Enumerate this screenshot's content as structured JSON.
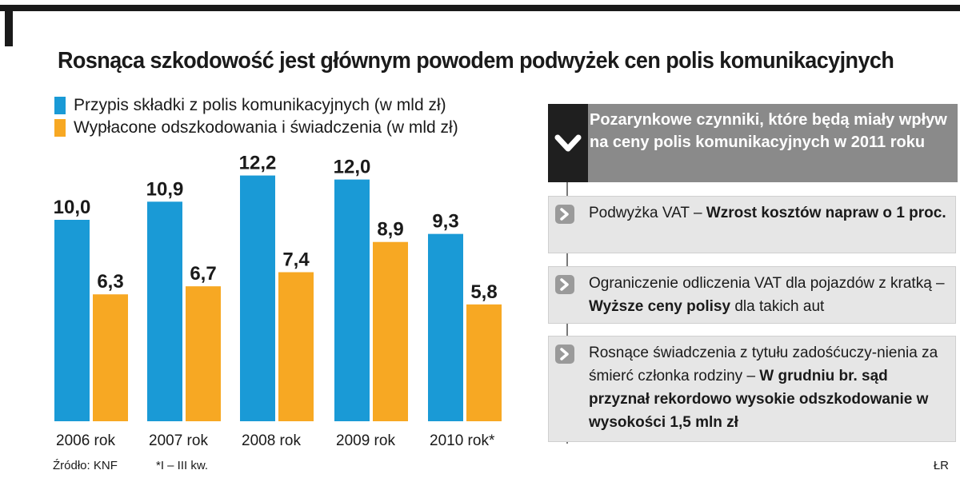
{
  "title": "Rosnąca szkodowość jest głównym powodem podwyżek cen polis komunikacyjnych",
  "chart_data": {
    "type": "bar",
    "categories": [
      "2006 rok",
      "2007 rok",
      "2008 rok",
      "2009 rok",
      "2010 rok*"
    ],
    "series": [
      {
        "name": "Przypis składki z polis komunikacyjnych (w mld zł)",
        "values": [
          10.0,
          10.9,
          12.2,
          12.0,
          9.3
        ],
        "labels": [
          "10,0",
          "10,9",
          "12,2",
          "12,0",
          "9,3"
        ],
        "color": "#1a9ad6"
      },
      {
        "name": "Wypłacone odszkodowania i świadczenia (w mld zł)",
        "values": [
          6.3,
          6.7,
          7.4,
          8.9,
          5.8
        ],
        "labels": [
          "6,3",
          "6,7",
          "7,4",
          "8,9",
          "5,8"
        ],
        "color": "#f7a823"
      }
    ],
    "ylim": [
      0,
      12.2
    ],
    "grid": false,
    "legend": "top-left"
  },
  "source": "Źródło: KNF",
  "footnote": "*I – III kw.",
  "author": "ŁR",
  "panel": {
    "header": "Pozarynkowe czynniki, które będą miały wpływ na ceny polis komunikacyjnych w 2011 roku",
    "items": [
      {
        "pre": "Podwyżka VAT – ",
        "bold": "Wzrost kosztów napraw o 1 proc.",
        "post": ""
      },
      {
        "pre": "Ograniczenie odliczenia VAT dla pojazdów z kratką  – ",
        "bold": "Wyższe ceny polisy",
        "post": " dla takich aut"
      },
      {
        "pre": "Rosnące świadczenia z tytułu zadośćuczy-nienia za śmierć członka rodziny – ",
        "bold": "W grudniu br. sąd przyznał rekordowo wysokie odszkodowanie w wysokości 1,5 mln zł",
        "post": ""
      }
    ]
  }
}
